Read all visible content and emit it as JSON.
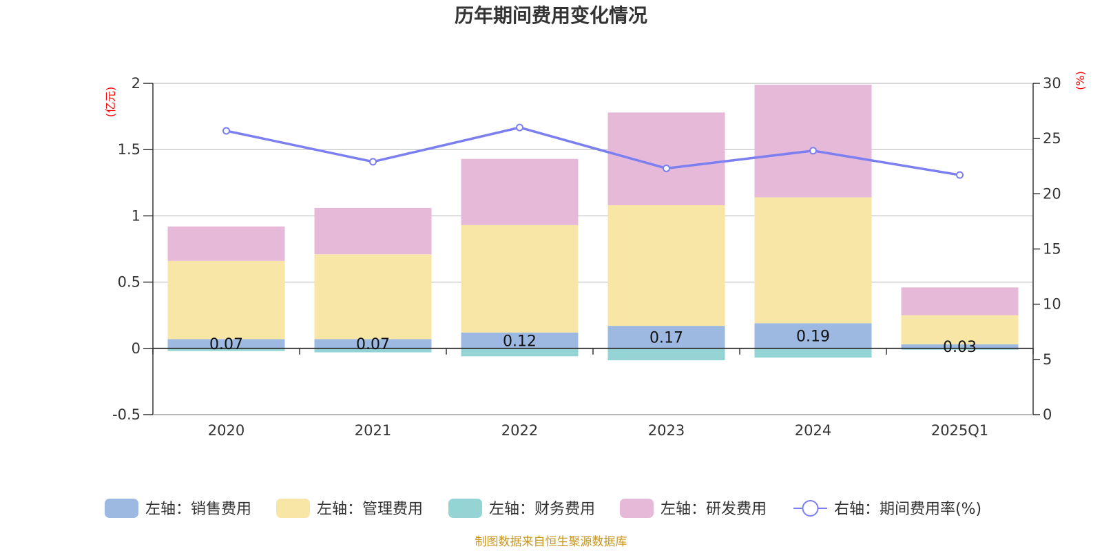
{
  "chart_data": {
    "type": "bar",
    "title": "历年期间费用变化情况",
    "left_axis_unit": "(亿元)",
    "right_axis_unit": "(%)",
    "categories": [
      "2020",
      "2021",
      "2022",
      "2023",
      "2024",
      "2025Q1"
    ],
    "y_left": {
      "min": -0.5,
      "max": 2,
      "ticks": [
        "2",
        "1.5",
        "1",
        "0.5",
        "0",
        "-0.5"
      ]
    },
    "y_right": {
      "min": 0,
      "max": 30,
      "ticks": [
        "30",
        "25",
        "20",
        "15",
        "10",
        "5",
        "0"
      ]
    },
    "grid": true,
    "legend_position": "bottom",
    "series": [
      {
        "name": "左轴：销售费用",
        "type": "bar",
        "axis": "left",
        "color": "#9db9e2",
        "values": [
          0.07,
          0.07,
          0.12,
          0.17,
          0.19,
          0.03
        ],
        "data_labels": [
          "0.07",
          "0.07",
          "0.12",
          "0.17",
          "0.19",
          "0.03"
        ]
      },
      {
        "name": "左轴：管理费用",
        "type": "bar",
        "axis": "left",
        "color": "#f8e6a6",
        "values": [
          0.59,
          0.64,
          0.81,
          0.91,
          0.95,
          0.22
        ]
      },
      {
        "name": "左轴：财务费用",
        "type": "bar",
        "axis": "left",
        "color": "#95d4d4",
        "values": [
          -0.02,
          -0.03,
          -0.06,
          -0.09,
          -0.07,
          -0.01
        ]
      },
      {
        "name": "左轴：研发费用",
        "type": "bar",
        "axis": "left",
        "color": "#e7b9d9",
        "values": [
          0.26,
          0.35,
          0.5,
          0.7,
          0.85,
          0.21
        ]
      },
      {
        "name": "右轴：期间费用率(%)",
        "type": "line",
        "axis": "right",
        "color": "#7b7ff0",
        "values": [
          25.7,
          22.9,
          26.0,
          22.3,
          23.9,
          21.7
        ]
      }
    ]
  },
  "source_note": "制图数据来自恒生聚源数据库"
}
